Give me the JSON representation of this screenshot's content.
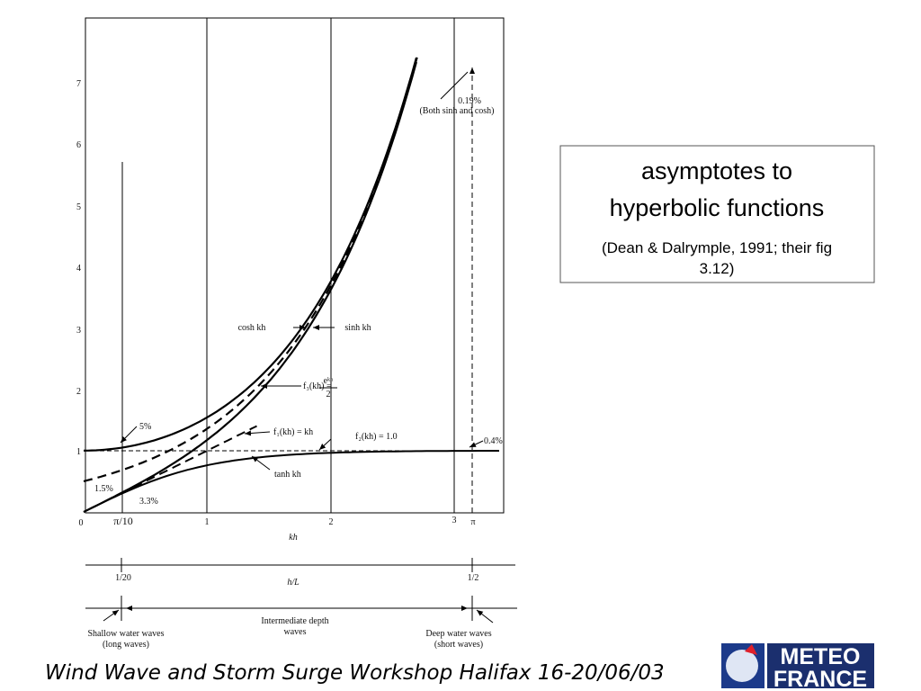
{
  "figure": {
    "y_tick_labels": [
      "0",
      "1",
      "2",
      "3",
      "4",
      "5",
      "6",
      "7"
    ],
    "x_tick_labels": [
      "π/10",
      "1",
      "2",
      "3",
      "π"
    ],
    "x_label": "kh",
    "annotations": {
      "deep_pct": "0.19%",
      "deep_note": "(Both sinh and cosh)",
      "cosh": "cosh kh",
      "sinh": "sinh kh",
      "f3": "f₃(kh) =",
      "f3_num": "eᵏʰ",
      "f3_den": "2",
      "f1": "f₁(kh) = kh",
      "f2": "f₂(kh) = 1.0",
      "pct5": "5%",
      "pct15": "1.5%",
      "pct33": "3.3%",
      "pct04": "0.4%",
      "tanh": "tanh kh"
    },
    "hl_axis": {
      "tick_labels": [
        "1/20",
        "1/2"
      ],
      "label": "h/L"
    },
    "regions": {
      "shallow": [
        "Shallow water waves",
        "(long waves)"
      ],
      "intermediate": [
        "Intermediate depth",
        "waves"
      ],
      "deep": [
        "Deep water waves",
        "(short waves)"
      ]
    }
  },
  "caption_box": {
    "title": [
      "asymptotes to",
      "hyperbolic functions"
    ],
    "source": [
      "(Dean & Dalrymple, 1991; their fig",
      "3.12)"
    ]
  },
  "footer": "Wind Wave and Storm Surge Workshop Halifax 16-20/06/03",
  "logo": [
    "METEO",
    "FRANCE"
  ]
}
